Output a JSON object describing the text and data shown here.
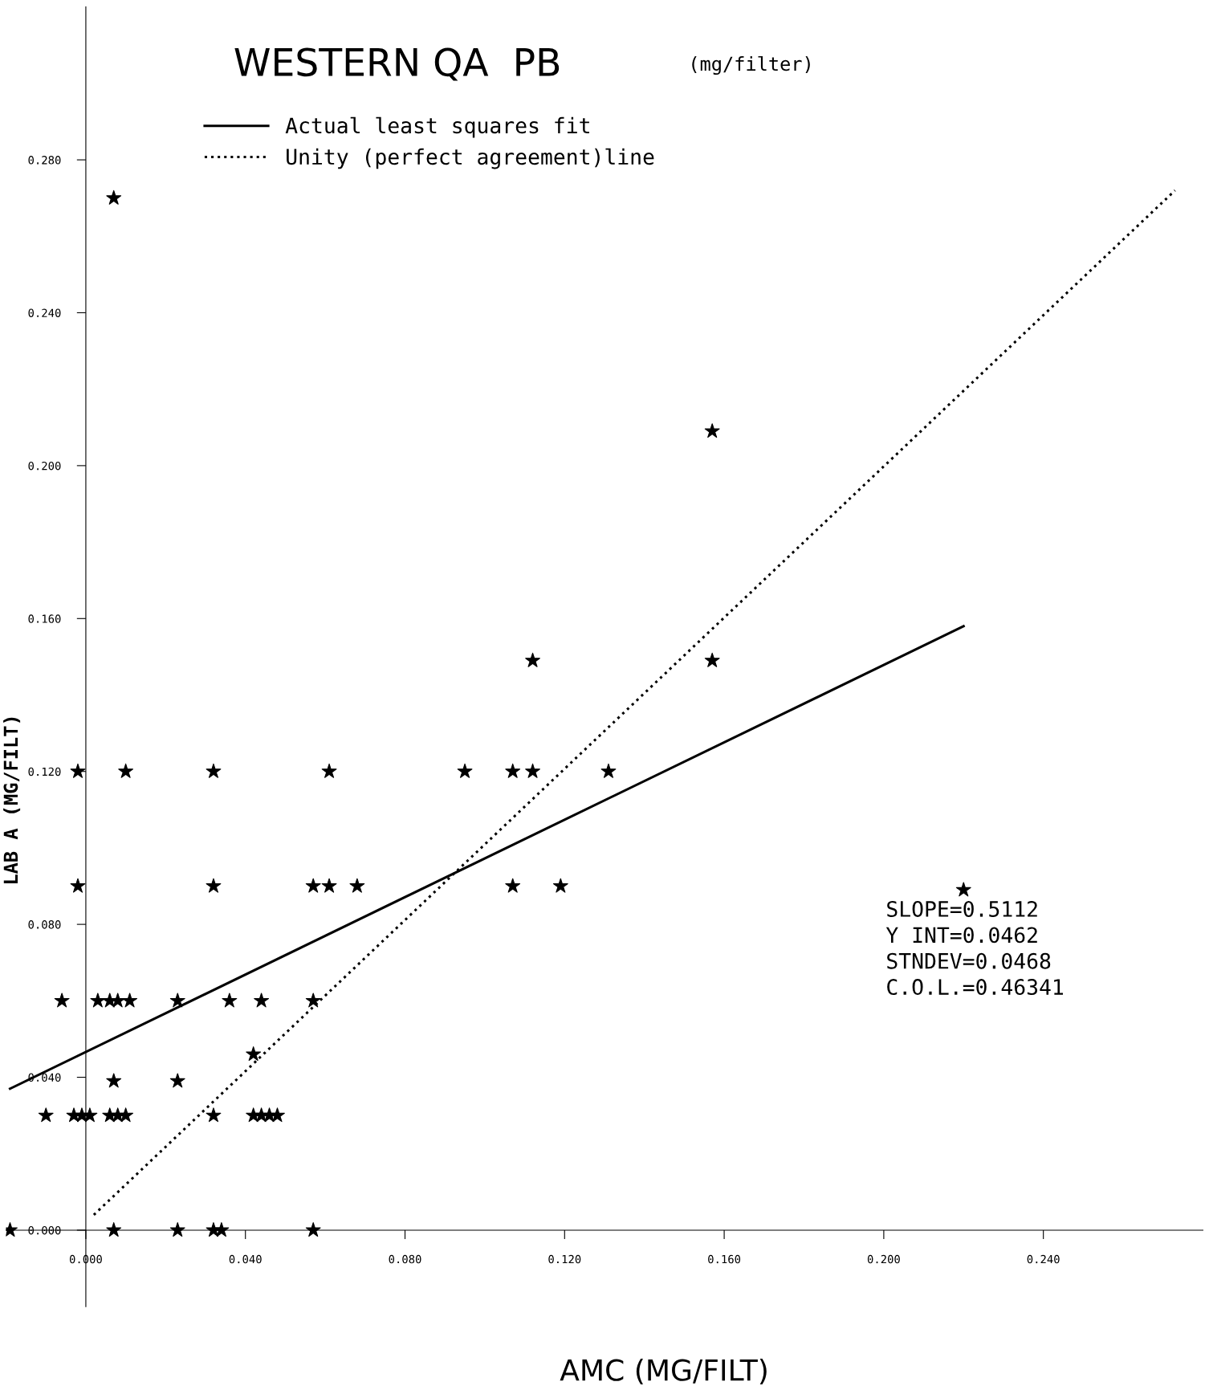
{
  "chart_data": {
    "type": "scatter",
    "title": "WESTERN QA  PB",
    "subtitle": "(mg/filter)",
    "xlabel": "AMC (MG/FILT)",
    "ylabel": "LAB A (MG/FILT)",
    "xlim": [
      -0.02,
      0.28
    ],
    "ylim": [
      -0.02,
      0.32
    ],
    "xticks": [
      {
        "value": 0,
        "label": "0.000"
      },
      {
        "value": 0.04,
        "label": "0.040"
      },
      {
        "value": 0.08,
        "label": "0.080"
      },
      {
        "value": 0.12,
        "label": "0.120"
      },
      {
        "value": 0.16,
        "label": "0.160"
      },
      {
        "value": 0.2,
        "label": "0.200"
      },
      {
        "value": 0.24,
        "label": "0.240"
      }
    ],
    "yticks": [
      {
        "value": 0,
        "label": "0.000"
      },
      {
        "value": 0.04,
        "label": "0.040"
      },
      {
        "value": 0.08,
        "label": "0.080"
      },
      {
        "value": 0.12,
        "label": "0.120"
      },
      {
        "value": 0.16,
        "label": "0.160"
      },
      {
        "value": 0.2,
        "label": "0.200"
      },
      {
        "value": 0.24,
        "label": "0.240"
      },
      {
        "value": 0.28,
        "label": "0.280"
      }
    ],
    "grid": false,
    "legend": "top left",
    "series": [
      {
        "color": "#000000",
        "marker": "star",
        "x": [
          0.007,
          0.157,
          0.112,
          0.157,
          -0.002,
          0.01,
          0.032,
          0.061,
          0.095,
          0.107,
          0.112,
          0.131,
          -0.002,
          0.032,
          0.057,
          0.061,
          0.068,
          0.107,
          0.119,
          0.22,
          -0.006,
          0.003,
          0.006,
          0.008,
          0.011,
          0.023,
          0.036,
          0.044,
          0.057,
          0.042,
          0.007,
          0.023,
          -0.01,
          -0.003,
          -0.001,
          0.001,
          0.006,
          0.008,
          0.01,
          0.032,
          0.042,
          0.044,
          0.046,
          0.048,
          -0.019,
          0.007,
          0.023,
          0.032,
          0.034,
          0.057
        ],
        "values": [
          0.27,
          0.209,
          0.149,
          0.149,
          0.12,
          0.12,
          0.12,
          0.12,
          0.12,
          0.12,
          0.12,
          0.12,
          0.09,
          0.09,
          0.09,
          0.09,
          0.09,
          0.09,
          0.09,
          0.089,
          0.06,
          0.06,
          0.06,
          0.06,
          0.06,
          0.06,
          0.06,
          0.06,
          0.06,
          0.046,
          0.039,
          0.039,
          0.03,
          0.03,
          0.03,
          0.03,
          0.03,
          0.03,
          0.03,
          0.03,
          0.03,
          0.03,
          0.03,
          0.03,
          0.0,
          0.0,
          0.0,
          0.0,
          0.0,
          0.0
        ]
      },
      {
        "type": "line",
        "name": "Actual least squares fit",
        "color": "#000000",
        "line_style": "solid",
        "marker": "none",
        "x": [
          -0.019,
          0.22
        ],
        "values": [
          0.037,
          0.158
        ]
      },
      {
        "type": "line",
        "name": "Unity (perfect agreement)line",
        "color": "#000000",
        "line_style": "dotted",
        "marker": "none",
        "x": [
          0.002,
          0.273
        ],
        "values": [
          0.004,
          0.272
        ]
      }
    ],
    "annotations": [
      "SLOPE=0.5112",
      "Y INT=0.0462",
      "STNDEV=0.0468",
      "C.O.L.=0.46341"
    ]
  }
}
